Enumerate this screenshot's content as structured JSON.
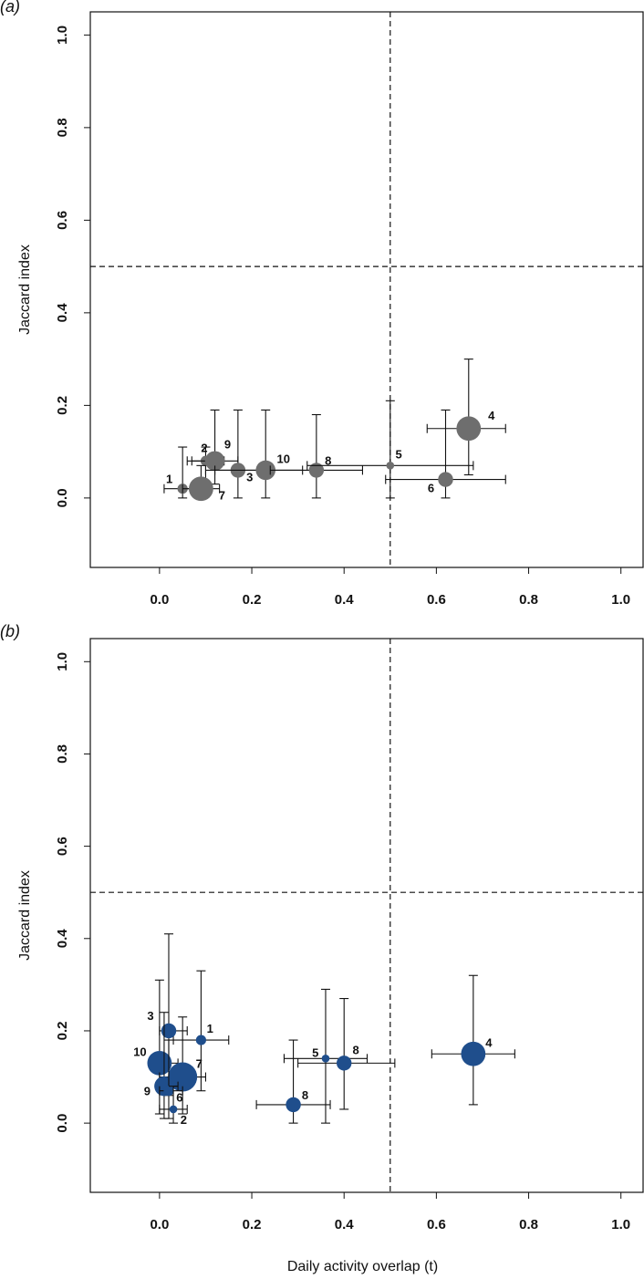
{
  "chart_data": [
    {
      "type": "scatter",
      "panel_label": "(a)",
      "xlabel": "",
      "ylabel": "Jaccard index",
      "xlim": [
        -0.15,
        1.05
      ],
      "ylim": [
        -0.15,
        1.05
      ],
      "xticks": [
        "0.0",
        "0.2",
        "0.4",
        "0.6",
        "0.8",
        "1.0"
      ],
      "yticks": [
        "0.0",
        "0.2",
        "0.4",
        "0.6",
        "0.8",
        "1.0"
      ],
      "reference_lines": {
        "x": 0.5,
        "y": 0.5
      },
      "color": "#6e6e6e",
      "points": [
        {
          "label": "1",
          "x": 0.05,
          "y": 0.02,
          "xerr": [
            0.01,
            0.1
          ],
          "yerr": [
            0.0,
            0.11
          ],
          "size": 1
        },
        {
          "label": "2",
          "x": 0.1,
          "y": 0.08,
          "xerr": [
            0.06,
            0.14
          ],
          "yerr": [
            0.02,
            0.11
          ],
          "size": 1
        },
        {
          "label": "9",
          "x": 0.12,
          "y": 0.08,
          "xerr": [
            0.07,
            0.17
          ],
          "yerr": [
            0.03,
            0.19
          ],
          "size": 3
        },
        {
          "label": "7",
          "x": 0.09,
          "y": 0.02,
          "xerr": [
            0.05,
            0.13
          ],
          "yerr": [
            0.0,
            0.07
          ],
          "size": 4
        },
        {
          "label": "3",
          "x": 0.17,
          "y": 0.06,
          "xerr": [
            0.1,
            0.24
          ],
          "yerr": [
            0.0,
            0.19
          ],
          "size": 2
        },
        {
          "label": "10",
          "x": 0.23,
          "y": 0.06,
          "xerr": [
            0.12,
            0.31
          ],
          "yerr": [
            0.0,
            0.19
          ],
          "size": 3
        },
        {
          "label": "8",
          "x": 0.34,
          "y": 0.06,
          "xerr": [
            0.24,
            0.44
          ],
          "yerr": [
            0.0,
            0.18
          ],
          "size": 2
        },
        {
          "label": "5",
          "x": 0.5,
          "y": 0.07,
          "xerr": [
            0.32,
            0.68
          ],
          "yerr": [
            0.0,
            0.21
          ],
          "size": 0.5
        },
        {
          "label": "6",
          "x": 0.62,
          "y": 0.04,
          "xerr": [
            0.49,
            0.75
          ],
          "yerr": [
            0.0,
            0.19
          ],
          "size": 2
        },
        {
          "label": "4",
          "x": 0.67,
          "y": 0.15,
          "xerr": [
            0.58,
            0.75
          ],
          "yerr": [
            0.05,
            0.3
          ],
          "size": 4
        }
      ]
    },
    {
      "type": "scatter",
      "panel_label": "(b)",
      "xlabel": "Daily activity overlap (t)",
      "ylabel": "Jaccard index",
      "xlim": [
        -0.15,
        1.05
      ],
      "ylim": [
        -0.15,
        1.05
      ],
      "xticks": [
        "0.0",
        "0.2",
        "0.4",
        "0.6",
        "0.8",
        "1.0"
      ],
      "yticks": [
        "0.0",
        "0.2",
        "0.4",
        "0.6",
        "0.8",
        "1.0"
      ],
      "reference_lines": {
        "x": 0.5,
        "y": 0.5
      },
      "color": "#1f4e8c",
      "points": [
        {
          "label": "1",
          "x": 0.09,
          "y": 0.18,
          "xerr": [
            0.03,
            0.15
          ],
          "yerr": [
            0.07,
            0.33
          ],
          "size": 1
        },
        {
          "label": "3",
          "x": 0.02,
          "y": 0.2,
          "xerr": [
            0.0,
            0.06
          ],
          "yerr": [
            0.06,
            0.41
          ],
          "size": 2
        },
        {
          "label": "10",
          "x": 0.0,
          "y": 0.13,
          "xerr": [
            0.0,
            0.04
          ],
          "yerr": [
            0.02,
            0.31
          ],
          "size": 4
        },
        {
          "label": "7",
          "x": 0.05,
          "y": 0.1,
          "xerr": [
            0.0,
            0.1
          ],
          "yerr": [
            0.02,
            0.23
          ],
          "size": 5
        },
        {
          "label": "9",
          "x": 0.01,
          "y": 0.08,
          "xerr": [
            0.0,
            0.04
          ],
          "yerr": [
            0.01,
            0.24
          ],
          "size": 3
        },
        {
          "label": "6",
          "x": 0.02,
          "y": 0.07,
          "xerr": [
            0.0,
            0.05
          ],
          "yerr": [
            0.01,
            0.18
          ],
          "size": 1
        },
        {
          "label": "2",
          "x": 0.03,
          "y": 0.03,
          "xerr": [
            0.0,
            0.06
          ],
          "yerr": [
            0.0,
            0.08
          ],
          "size": 0.5
        },
        {
          "label": "5",
          "x": 0.36,
          "y": 0.14,
          "xerr": [
            0.27,
            0.45
          ],
          "yerr": [
            0.0,
            0.29
          ],
          "size": 0.5
        },
        {
          "label": "8",
          "x": 0.4,
          "y": 0.13,
          "xerr": [
            0.3,
            0.51
          ],
          "yerr": [
            0.03,
            0.27
          ],
          "size": 2
        },
        {
          "label": "8",
          "x": 0.29,
          "y": 0.04,
          "xerr": [
            0.21,
            0.37
          ],
          "yerr": [
            0.0,
            0.18
          ],
          "size": 2
        },
        {
          "label": "4",
          "x": 0.68,
          "y": 0.15,
          "xerr": [
            0.59,
            0.77
          ],
          "yerr": [
            0.04,
            0.32
          ],
          "size": 4
        }
      ]
    }
  ]
}
